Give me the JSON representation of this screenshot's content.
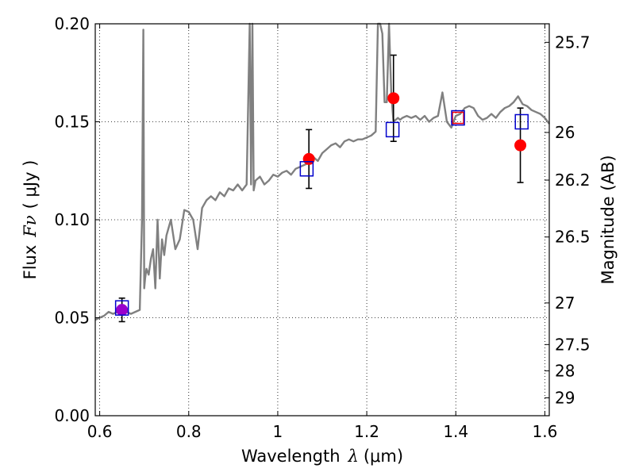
{
  "chart_data": {
    "type": "scatter",
    "title": "",
    "xlabel_prefix": "Wavelength",
    "xlabel_symbol": "λ",
    "xlabel_unit": "(μm)",
    "ylabel_prefix": "Flux",
    "ylabel_symbol": "Fν",
    "ylabel_unit": "( μJy )",
    "y2label": "Magnitude (AB)",
    "xlim": [
      0.59,
      1.61
    ],
    "ylim": [
      0.0,
      0.2
    ],
    "x_ticks": [
      0.6,
      0.8,
      1.0,
      1.2,
      1.4,
      1.6
    ],
    "x_tick_labels": [
      "0.6",
      "0.8",
      "1",
      "1.2",
      "1.4",
      "1.6"
    ],
    "y_ticks": [
      0.0,
      0.05,
      0.1,
      0.15,
      0.2
    ],
    "y_tick_labels": [
      "0.00",
      "0.05",
      "0.10",
      "0.15",
      "0.20"
    ],
    "y2_ticks": [
      25.7,
      26,
      26.2,
      26.5,
      27,
      27.5,
      28,
      29
    ],
    "y2_tick_labels": [
      "25.7",
      "26",
      "26.2",
      "26.5",
      "27",
      "27.5",
      "28",
      "29"
    ],
    "grid": true,
    "colors": {
      "model": "#808080",
      "observed": "#ff0000",
      "model_phot": "#0000cc",
      "errorbar": "#000000",
      "overlap": "#9900cc"
    },
    "model_spectrum": {
      "x": [
        0.59,
        0.6,
        0.61,
        0.62,
        0.63,
        0.64,
        0.65,
        0.66,
        0.67,
        0.68,
        0.69,
        0.695,
        0.698,
        0.7,
        0.702,
        0.705,
        0.71,
        0.715,
        0.72,
        0.725,
        0.73,
        0.735,
        0.74,
        0.745,
        0.75,
        0.76,
        0.77,
        0.78,
        0.79,
        0.8,
        0.81,
        0.82,
        0.83,
        0.84,
        0.85,
        0.86,
        0.87,
        0.88,
        0.89,
        0.9,
        0.91,
        0.92,
        0.93,
        0.937,
        0.94,
        0.943,
        0.946,
        0.95,
        0.96,
        0.97,
        0.98,
        0.99,
        1.0,
        1.01,
        1.02,
        1.03,
        1.04,
        1.05,
        1.06,
        1.07,
        1.08,
        1.09,
        1.1,
        1.11,
        1.12,
        1.13,
        1.14,
        1.15,
        1.16,
        1.17,
        1.18,
        1.19,
        1.2,
        1.21,
        1.22,
        1.225,
        1.23,
        1.235,
        1.24,
        1.245,
        1.25,
        1.255,
        1.26,
        1.265,
        1.27,
        1.275,
        1.28,
        1.29,
        1.3,
        1.31,
        1.32,
        1.33,
        1.34,
        1.35,
        1.36,
        1.37,
        1.38,
        1.39,
        1.4,
        1.41,
        1.42,
        1.43,
        1.44,
        1.45,
        1.46,
        1.47,
        1.48,
        1.49,
        1.5,
        1.51,
        1.52,
        1.53,
        1.54,
        1.55,
        1.56,
        1.57,
        1.58,
        1.59,
        1.6,
        1.61
      ],
      "y": [
        0.049,
        0.05,
        0.051,
        0.053,
        0.052,
        0.053,
        0.054,
        0.053,
        0.052,
        0.053,
        0.054,
        0.1,
        0.197,
        0.065,
        0.07,
        0.075,
        0.072,
        0.08,
        0.085,
        0.065,
        0.1,
        0.07,
        0.09,
        0.082,
        0.092,
        0.1,
        0.085,
        0.09,
        0.105,
        0.104,
        0.1,
        0.085,
        0.106,
        0.11,
        0.112,
        0.11,
        0.114,
        0.112,
        0.116,
        0.115,
        0.118,
        0.115,
        0.118,
        0.2,
        0.118,
        0.2,
        0.115,
        0.12,
        0.122,
        0.118,
        0.12,
        0.123,
        0.122,
        0.124,
        0.125,
        0.123,
        0.126,
        0.127,
        0.128,
        0.129,
        0.132,
        0.13,
        0.134,
        0.136,
        0.138,
        0.139,
        0.137,
        0.14,
        0.141,
        0.14,
        0.141,
        0.141,
        0.142,
        0.143,
        0.145,
        0.2,
        0.2,
        0.195,
        0.16,
        0.16,
        0.2,
        0.165,
        0.15,
        0.151,
        0.152,
        0.151,
        0.152,
        0.153,
        0.152,
        0.153,
        0.151,
        0.153,
        0.15,
        0.152,
        0.153,
        0.165,
        0.15,
        0.147,
        0.153,
        0.154,
        0.157,
        0.158,
        0.157,
        0.153,
        0.151,
        0.152,
        0.154,
        0.152,
        0.155,
        0.157,
        0.158,
        0.16,
        0.163,
        0.159,
        0.158,
        0.156,
        0.155,
        0.154,
        0.152,
        0.149
      ],
      "spike_x": [
        0.698,
        0.937,
        0.943,
        1.228,
        1.236,
        1.253
      ]
    },
    "observed_points": [
      {
        "x": 0.65,
        "y": 0.054,
        "yerr": 0.006
      },
      {
        "x": 1.07,
        "y": 0.131,
        "yerr": 0.015
      },
      {
        "x": 1.26,
        "y": 0.162,
        "yerr": 0.022
      },
      {
        "x": 1.405,
        "y": 0.152,
        "yerr": 0.0
      },
      {
        "x": 1.545,
        "y": 0.138,
        "yerr": 0.019
      }
    ],
    "model_photometry": [
      {
        "x": 0.65,
        "y": 0.055
      },
      {
        "x": 1.065,
        "y": 0.126
      },
      {
        "x": 1.258,
        "y": 0.146
      },
      {
        "x": 1.405,
        "y": 0.152
      },
      {
        "x": 1.548,
        "y": 0.15
      }
    ]
  }
}
